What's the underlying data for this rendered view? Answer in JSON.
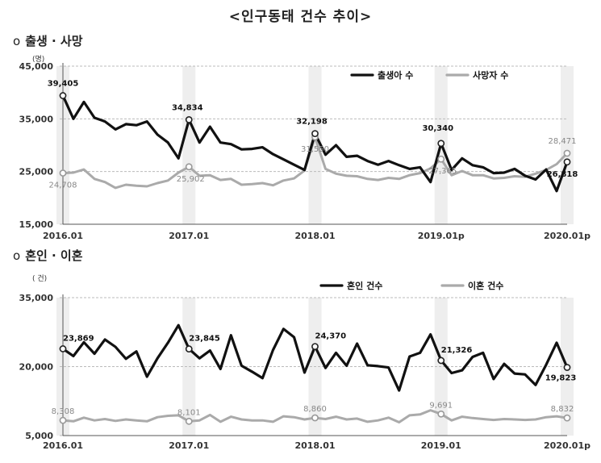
{
  "title": "<인구동태 건수 추이>",
  "chart_data": [
    {
      "type": "line",
      "section_bullet": "o",
      "section_title": "출생 · 사망",
      "unit": "(명)",
      "ylim": [
        15000,
        45000
      ],
      "y_ticks": [
        "45,000",
        "35,000",
        "25,000",
        "15,000"
      ],
      "y_tick_values": [
        45000,
        35000,
        25000,
        15000
      ],
      "x_ticks": [
        "2016.01",
        "2017.01",
        "2018.01",
        "2019.01p",
        "2020.01p"
      ],
      "x_tick_index": [
        0,
        12,
        24,
        36,
        48
      ],
      "grid": true,
      "legend_placement": "top-right",
      "series": [
        {
          "name": "출생아 수",
          "color": "#111111",
          "values": [
            39405,
            35000,
            38200,
            35200,
            34500,
            33000,
            34000,
            33800,
            34500,
            32000,
            30500,
            27500,
            34834,
            30500,
            33500,
            30500,
            30200,
            29200,
            29300,
            29600,
            28300,
            27300,
            26300,
            25300,
            32198,
            28200,
            30000,
            27800,
            28000,
            27000,
            26300,
            27000,
            26200,
            25500,
            25800,
            23000,
            30340,
            25300,
            27500,
            26200,
            25800,
            24700,
            24800,
            25500,
            24200,
            23500,
            25400,
            21300,
            26818
          ],
          "labels": [
            {
              "index": 0,
              "text": "39,405"
            },
            {
              "index": 12,
              "text": "34,834"
            },
            {
              "index": 24,
              "text": "32,198"
            },
            {
              "index": 36,
              "text": "30,340"
            },
            {
              "index": 48,
              "text": "26,818"
            }
          ]
        },
        {
          "name": "사망자 수",
          "color": "#aaaaaa",
          "values": [
            24708,
            24800,
            25400,
            23600,
            23000,
            21900,
            22500,
            22300,
            22200,
            22800,
            23300,
            24800,
            25902,
            24200,
            24300,
            23400,
            23600,
            22500,
            22600,
            22800,
            22400,
            23300,
            23700,
            25200,
            31550,
            25500,
            24600,
            24200,
            24100,
            23600,
            23400,
            23800,
            23600,
            24300,
            24700,
            25600,
            27365,
            24300,
            25100,
            24300,
            24300,
            23700,
            23800,
            24100,
            24000,
            24600,
            25300,
            26400,
            28471
          ],
          "labels": [
            {
              "index": 0,
              "text": "24,708"
            },
            {
              "index": 12,
              "text": "25,902"
            },
            {
              "index": 24,
              "text": "31,550"
            },
            {
              "index": 36,
              "text": "27,365"
            },
            {
              "index": 48,
              "text": "28,471"
            }
          ]
        }
      ]
    },
    {
      "type": "line",
      "section_bullet": "o",
      "section_title": "혼인 · 이혼",
      "unit": "( 건)",
      "ylim": [
        5000,
        35000
      ],
      "y_ticks": [
        "35,000",
        "20,000",
        "5,000"
      ],
      "y_tick_values": [
        35000,
        20000,
        5000
      ],
      "x_ticks": [
        "2016.01",
        "2017.01",
        "2018.01",
        "2019.01",
        "2020.01p"
      ],
      "x_tick_index": [
        0,
        12,
        24,
        36,
        48
      ],
      "grid": true,
      "legend_placement": "top-right",
      "series": [
        {
          "name": "혼인 건수",
          "color": "#111111",
          "values": [
            23869,
            22300,
            25300,
            22800,
            25900,
            24300,
            21700,
            23300,
            17800,
            21800,
            25200,
            29000,
            23845,
            21800,
            23500,
            19500,
            26800,
            20200,
            18900,
            17500,
            23600,
            28200,
            26400,
            18700,
            24370,
            19700,
            23000,
            20200,
            25000,
            20300,
            20100,
            19800,
            14800,
            22200,
            23000,
            27000,
            21326,
            18600,
            19200,
            22100,
            23000,
            17300,
            20600,
            18500,
            18300,
            16000,
            20400,
            25200,
            19823
          ],
          "labels": [
            {
              "index": 0,
              "text": "23,869"
            },
            {
              "index": 12,
              "text": "23,845"
            },
            {
              "index": 24,
              "text": "24,370"
            },
            {
              "index": 36,
              "text": "21,326"
            },
            {
              "index": 48,
              "text": "19,823"
            }
          ]
        },
        {
          "name": "이혼 건수",
          "color": "#aaaaaa",
          "values": [
            8308,
            8100,
            8900,
            8300,
            8600,
            8200,
            8500,
            8300,
            8100,
            9000,
            9300,
            9400,
            8101,
            8300,
            9500,
            8000,
            9100,
            8500,
            8300,
            8300,
            8000,
            9200,
            9000,
            8500,
            8860,
            8600,
            9100,
            8500,
            8700,
            8000,
            8300,
            8900,
            7900,
            9400,
            9600,
            10500,
            9691,
            8300,
            9100,
            8800,
            8600,
            8400,
            8600,
            8500,
            8400,
            8500,
            9000,
            9200,
            8832
          ],
          "labels": [
            {
              "index": 0,
              "text": "8,308"
            },
            {
              "index": 12,
              "text": "8,101"
            },
            {
              "index": 24,
              "text": "8,860"
            },
            {
              "index": 36,
              "text": "9,691"
            },
            {
              "index": 48,
              "text": "8,832"
            }
          ]
        }
      ]
    }
  ]
}
